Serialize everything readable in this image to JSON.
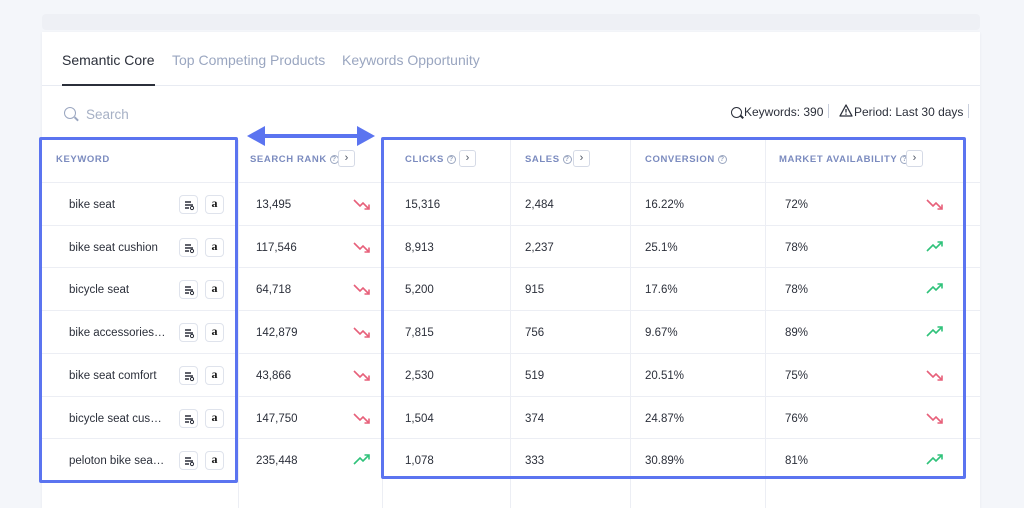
{
  "tabs": [
    {
      "label": "Semantic Core",
      "active": true
    },
    {
      "label": "Top Competing Products",
      "active": false
    },
    {
      "label": "Keywords Opportunity",
      "active": false
    }
  ],
  "search": {
    "placeholder": "Search",
    "value": ""
  },
  "meta": {
    "keywords_label": "Keywords:",
    "keywords_value": "390",
    "period_label": "Period:",
    "period_value": "Last 30 days"
  },
  "columns": {
    "keyword": "KEYWORD",
    "search_rank": "SEARCH RANK",
    "clicks": "CLICKS",
    "sales": "SALES",
    "conversion": "CONVERSION",
    "market_availability": "MARKET AVAILABILITY"
  },
  "colors": {
    "accent": "#5b74f0",
    "down": "#e7607a",
    "up": "#2fc27a"
  },
  "rows": [
    {
      "keyword": "bike seat",
      "search_rank": "13,495",
      "rank_trend": "down",
      "clicks": "15,316",
      "sales": "2,484",
      "conversion": "16.22%",
      "market": "72%",
      "market_trend": "down"
    },
    {
      "keyword": "bike seat cushion",
      "search_rank": "117,546",
      "rank_trend": "down",
      "clicks": "8,913",
      "sales": "2,237",
      "conversion": "25.1%",
      "market": "78%",
      "market_trend": "up"
    },
    {
      "keyword": "bicycle seat",
      "search_rank": "64,718",
      "rank_trend": "down",
      "clicks": "5,200",
      "sales": "915",
      "conversion": "17.6%",
      "market": "78%",
      "market_trend": "up"
    },
    {
      "keyword": "bike accessories f...",
      "search_rank": "142,879",
      "rank_trend": "down",
      "clicks": "7,815",
      "sales": "756",
      "conversion": "9.67%",
      "market": "89%",
      "market_trend": "up"
    },
    {
      "keyword": "bike seat comfort",
      "search_rank": "43,866",
      "rank_trend": "down",
      "clicks": "2,530",
      "sales": "519",
      "conversion": "20.51%",
      "market": "75%",
      "market_trend": "down"
    },
    {
      "keyword": "bicycle seat cushion",
      "search_rank": "147,750",
      "rank_trend": "down",
      "clicks": "1,504",
      "sales": "374",
      "conversion": "24.87%",
      "market": "76%",
      "market_trend": "down"
    },
    {
      "keyword": "peloton bike seat ...",
      "search_rank": "235,448",
      "rank_trend": "up",
      "clicks": "1,078",
      "sales": "333",
      "conversion": "30.89%",
      "market": "81%",
      "market_trend": "up"
    }
  ]
}
